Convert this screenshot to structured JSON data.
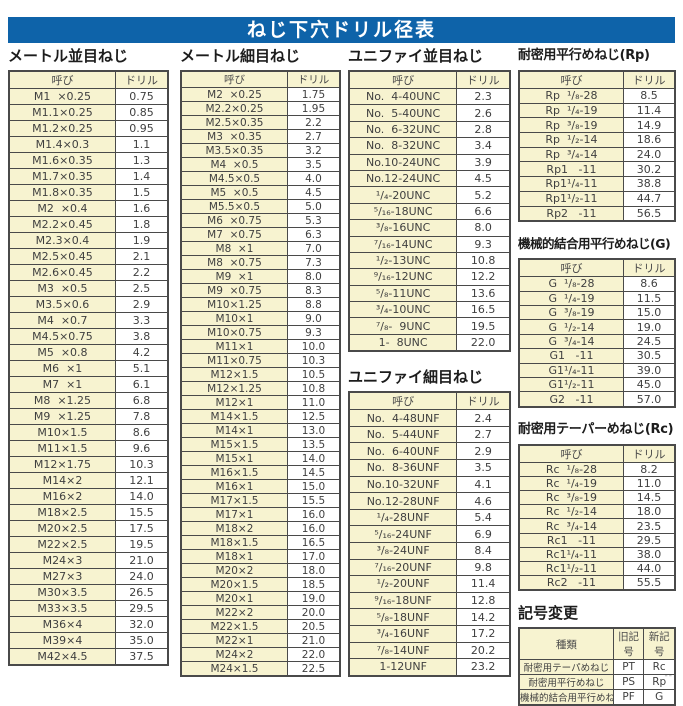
{
  "title": "ねじ下穴ドリル径表",
  "corner_mark": "--",
  "colors": {
    "banner_bg": "#0e63a9",
    "banner_text": "#ffffff",
    "cell_fill": "#f7f3d0",
    "border": "#4a4a4a"
  },
  "tables": {
    "metric_coarse": {
      "title": "メートル並目ねじ",
      "headers": [
        "呼び",
        "ドリル"
      ],
      "rows": [
        [
          "M1  ×0.25",
          "0.75"
        ],
        [
          "M1.1×0.25",
          "0.85"
        ],
        [
          "M1.2×0.25",
          "0.95"
        ],
        [
          "M1.4×0.3",
          "1.1"
        ],
        [
          "M1.6×0.35",
          "1.3"
        ],
        [
          "M1.7×0.35",
          "1.4"
        ],
        [
          "M1.8×0.35",
          "1.5"
        ],
        [
          "M2  ×0.4",
          "1.6"
        ],
        [
          "M2.2×0.45",
          "1.8"
        ],
        [
          "M2.3×0.4",
          "1.9"
        ],
        [
          "M2.5×0.45",
          "2.1"
        ],
        [
          "M2.6×0.45",
          "2.2"
        ],
        [
          "M3  ×0.5",
          "2.5"
        ],
        [
          "M3.5×0.6",
          "2.9"
        ],
        [
          "M4  ×0.7",
          "3.3"
        ],
        [
          "M4.5×0.75",
          "3.8"
        ],
        [
          "M5  ×0.8",
          "4.2"
        ],
        [
          "M6  ×1",
          "5.1"
        ],
        [
          "M7  ×1",
          "6.1"
        ],
        [
          "M8  ×1.25",
          "6.8"
        ],
        [
          "M9  ×1.25",
          "7.8"
        ],
        [
          "M10×1.5",
          "8.6"
        ],
        [
          "M11×1.5",
          "9.6"
        ],
        [
          "M12×1.75",
          "10.3"
        ],
        [
          "M14×2",
          "12.1"
        ],
        [
          "M16×2",
          "14.0"
        ],
        [
          "M18×2.5",
          "15.5"
        ],
        [
          "M20×2.5",
          "17.5"
        ],
        [
          "M22×2.5",
          "19.5"
        ],
        [
          "M24×3",
          "21.0"
        ],
        [
          "M27×3",
          "24.0"
        ],
        [
          "M30×3.5",
          "26.5"
        ],
        [
          "M33×3.5",
          "29.5"
        ],
        [
          "M36×4",
          "32.0"
        ],
        [
          "M39×4",
          "35.0"
        ],
        [
          "M42×4.5",
          "37.5"
        ]
      ]
    },
    "metric_fine": {
      "title": "メートル細目ねじ",
      "headers": [
        "呼び",
        "ドリル"
      ],
      "rows": [
        [
          "M2  ×0.25",
          "1.75"
        ],
        [
          "M2.2×0.25",
          "1.95"
        ],
        [
          "M2.5×0.35",
          "2.2"
        ],
        [
          "M3  ×0.35",
          "2.7"
        ],
        [
          "M3.5×0.35",
          "3.2"
        ],
        [
          "M4  ×0.5",
          "3.5"
        ],
        [
          "M4.5×0.5",
          "4.0"
        ],
        [
          "M5  ×0.5",
          "4.5"
        ],
        [
          "M5.5×0.5",
          "5.0"
        ],
        [
          "M6  ×0.75",
          "5.3"
        ],
        [
          "M7  ×0.75",
          "6.3"
        ],
        [
          "M8  ×1",
          "7.0"
        ],
        [
          "M8  ×0.75",
          "7.3"
        ],
        [
          "M9  ×1",
          "8.0"
        ],
        [
          "M9  ×0.75",
          "8.3"
        ],
        [
          "M10×1.25",
          "8.8"
        ],
        [
          "M10×1",
          "9.0"
        ],
        [
          "M10×0.75",
          "9.3"
        ],
        [
          "M11×1",
          "10.0"
        ],
        [
          "M11×0.75",
          "10.3"
        ],
        [
          "M12×1.5",
          "10.5"
        ],
        [
          "M12×1.25",
          "10.8"
        ],
        [
          "M12×1",
          "11.0"
        ],
        [
          "M14×1.5",
          "12.5"
        ],
        [
          "M14×1",
          "13.0"
        ],
        [
          "M15×1.5",
          "13.5"
        ],
        [
          "M15×1",
          "14.0"
        ],
        [
          "M16×1.5",
          "14.5"
        ],
        [
          "M16×1",
          "15.0"
        ],
        [
          "M17×1.5",
          "15.5"
        ],
        [
          "M17×1",
          "16.0"
        ],
        [
          "M18×2",
          "16.0"
        ],
        [
          "M18×1.5",
          "16.5"
        ],
        [
          "M18×1",
          "17.0"
        ],
        [
          "M20×2",
          "18.0"
        ],
        [
          "M20×1.5",
          "18.5"
        ],
        [
          "M20×1",
          "19.0"
        ],
        [
          "M22×2",
          "20.0"
        ],
        [
          "M22×1.5",
          "20.5"
        ],
        [
          "M22×1",
          "21.0"
        ],
        [
          "M24×2",
          "22.0"
        ],
        [
          "M24×1.5",
          "22.5"
        ]
      ]
    },
    "unc": {
      "title": "ユニファイ並目ねじ",
      "headers": [
        "呼び",
        "ドリル"
      ],
      "rows": [
        [
          "No.  4-40UNC",
          "2.3"
        ],
        [
          "No.  5-40UNC",
          "2.6"
        ],
        [
          "No.  6-32UNC",
          "2.8"
        ],
        [
          "No.  8-32UNC",
          "3.4"
        ],
        [
          "No.10-24UNC",
          "3.9"
        ],
        [
          "No.12-24UNC",
          "4.5"
        ],
        [
          "¹/₄-20UNC",
          "5.2"
        ],
        [
          "⁵/₁₆-18UNC",
          "6.6"
        ],
        [
          "³/₈-16UNC",
          "8.0"
        ],
        [
          "⁷/₁₆-14UNC",
          "9.3"
        ],
        [
          "¹/₂-13UNC",
          "10.8"
        ],
        [
          "⁹/₁₆-12UNC",
          "12.2"
        ],
        [
          "⁵/₈-11UNC",
          "13.6"
        ],
        [
          "³/₄-10UNC",
          "16.5"
        ],
        [
          "⁷/₈-  9UNC",
          "19.5"
        ],
        [
          "1-  8UNC",
          "22.0"
        ]
      ]
    },
    "unf": {
      "title": "ユニファイ細目ねじ",
      "headers": [
        "呼び",
        "ドリル"
      ],
      "rows": [
        [
          "No.  4-48UNF",
          "2.4"
        ],
        [
          "No.  5-44UNF",
          "2.7"
        ],
        [
          "No.  6-40UNF",
          "2.9"
        ],
        [
          "No.  8-36UNF",
          "3.5"
        ],
        [
          "No.10-32UNF",
          "4.1"
        ],
        [
          "No.12-28UNF",
          "4.6"
        ],
        [
          "¹/₄-28UNF",
          "5.4"
        ],
        [
          "⁵/₁₆-24UNF",
          "6.9"
        ],
        [
          "³/₈-24UNF",
          "8.4"
        ],
        [
          "⁷/₁₆-20UNF",
          "9.8"
        ],
        [
          "¹/₂-20UNF",
          "11.4"
        ],
        [
          "⁹/₁₆-18UNF",
          "12.8"
        ],
        [
          "⁵/₈-18UNF",
          "14.2"
        ],
        [
          "³/₄-16UNF",
          "17.2"
        ],
        [
          "⁷/₈-14UNF",
          "20.2"
        ],
        [
          "1-12UNF",
          "23.2"
        ]
      ]
    },
    "rp": {
      "title": "耐密用平行めねじ(Rp)",
      "headers": [
        "呼び",
        "ドリル"
      ],
      "rows": [
        [
          "Rp  ¹/₈-28",
          "8.5"
        ],
        [
          "Rp  ¹/₄-19",
          "11.4"
        ],
        [
          "Rp  ³/₈-19",
          "14.9"
        ],
        [
          "Rp  ¹/₂-14",
          "18.6"
        ],
        [
          "Rp  ³/₄-14",
          "24.0"
        ],
        [
          "Rp1   -11",
          "30.2"
        ],
        [
          "Rp1¹/₄-11",
          "38.8"
        ],
        [
          "Rp1¹/₂-11",
          "44.7"
        ],
        [
          "Rp2   -11",
          "56.5"
        ]
      ]
    },
    "g": {
      "title": "機械的結合用平行めねじ(G)",
      "headers": [
        "呼び",
        "ドリル"
      ],
      "rows": [
        [
          "G  ¹/₈-28",
          "8.6"
        ],
        [
          "G  ¹/₄-19",
          "11.5"
        ],
        [
          "G  ³/₈-19",
          "15.0"
        ],
        [
          "G  ¹/₂-14",
          "19.0"
        ],
        [
          "G  ³/₄-14",
          "24.5"
        ],
        [
          "G1   -11",
          "30.5"
        ],
        [
          "G1¹/₄-11",
          "39.0"
        ],
        [
          "G1¹/₂-11",
          "45.0"
        ],
        [
          "G2   -11",
          "57.0"
        ]
      ]
    },
    "rc": {
      "title": "耐密用テーパーめねじ(Rc)",
      "headers": [
        "呼び",
        "ドリル"
      ],
      "rows": [
        [
          "Rc  ¹/₈-28",
          "8.2"
        ],
        [
          "Rc  ¹/₄-19",
          "11.0"
        ],
        [
          "Rc  ³/₈-19",
          "14.5"
        ],
        [
          "Rc  ¹/₂-14",
          "18.0"
        ],
        [
          "Rc  ³/₄-14",
          "23.5"
        ],
        [
          "Rc1   -11",
          "29.5"
        ],
        [
          "Rc1¹/₄-11",
          "38.0"
        ],
        [
          "Rc1¹/₂-11",
          "44.0"
        ],
        [
          "Rc2   -11",
          "55.5"
        ]
      ]
    },
    "symbols": {
      "title": "記号変更",
      "headers": [
        "種類",
        "旧記号",
        "新記号"
      ],
      "rows": [
        [
          "耐密用テーパめねじ",
          "PT",
          "Rc"
        ],
        [
          "耐密用平行めねじ",
          "PS",
          "Rp"
        ],
        [
          "機械的結合用平行めねじ",
          "PF",
          "G"
        ]
      ]
    }
  }
}
